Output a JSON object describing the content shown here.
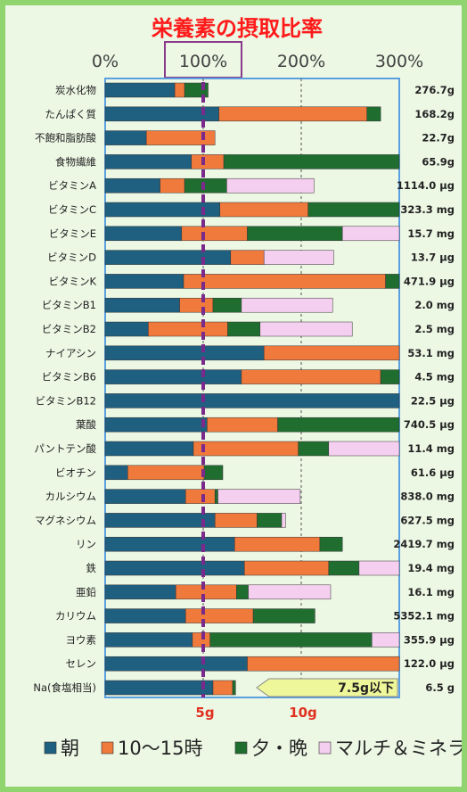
{
  "chart_data": {
    "type": "bar",
    "orientation": "horizontal",
    "stacked": true,
    "title": "栄養素の摂取比率",
    "x_ticks": [
      "0%",
      "100%",
      "200%",
      "300%"
    ],
    "xlim": [
      0,
      300
    ],
    "grid": "dashed vertical at 100% and 200%",
    "categories": [
      "炭水化物",
      "たんぱく質",
      "不飽和脂肪酸",
      "食物繊維",
      "ビタミンA",
      "ビタミンC",
      "ビタミンE",
      "ビタミンD",
      "ビタミンK",
      "ビタミンB1",
      "ビタミンB2",
      "ナイアシン",
      "ビタミンB6",
      "ビタミンB12",
      "葉酸",
      "パントテン酸",
      "ビオチン",
      "カルシウム",
      "マグネシウム",
      "リン",
      "鉄",
      "亜鉛",
      "カリウム",
      "ヨウ素",
      "セレン",
      "Na(食塩相当)"
    ],
    "totals": [
      "276.7g",
      "168.2g",
      "22.7g",
      "65.9g",
      "1114.0 μg",
      "323.3 mg",
      "15.7 mg",
      "13.7 μg",
      "471.9 μg",
      "2.0 mg",
      "2.5 mg",
      "53.1 mg",
      "4.5 mg",
      "22.5 μg",
      "740.5 μg",
      "11.4 mg",
      "61.6 μg",
      "838.0 mg",
      "627.5 mg",
      "2419.7 mg",
      "19.4 mg",
      "16.1 mg",
      "5352.1 mg",
      "355.9 μg",
      "122.0 μg",
      "6.5 g"
    ],
    "series": [
      {
        "name": "朝",
        "color": "#1f5f80",
        "values": [
          71,
          116,
          42,
          88,
          56,
          117,
          78,
          128,
          80,
          76,
          44,
          162,
          139,
          300,
          104,
          90,
          23,
          82,
          112,
          132,
          142,
          72,
          82,
          89,
          145,
          110
        ]
      },
      {
        "name": "10～15時",
        "color": "#f07a3c",
        "values": [
          10,
          151,
          70,
          33,
          25,
          90,
          67,
          34,
          206,
          34,
          81,
          138,
          142,
          0,
          72,
          107,
          78,
          30,
          43,
          87,
          86,
          62,
          69,
          18,
          155,
          20
        ]
      },
      {
        "name": "夕・晩",
        "color": "#1f6e30",
        "values": [
          24,
          14,
          0,
          180,
          43,
          94,
          97,
          0,
          16,
          29,
          33,
          0,
          19,
          0,
          124,
          31,
          19,
          3,
          25,
          23,
          31,
          12,
          63,
          165,
          0,
          3
        ]
      },
      {
        "name": "マルチ＆ミネラル",
        "color": "#f5cff0",
        "values": [
          0,
          0,
          0,
          0,
          89,
          0,
          58,
          71,
          0,
          93,
          94,
          0,
          0,
          0,
          0,
          72,
          0,
          84,
          4,
          0,
          41,
          84,
          0,
          28,
          0,
          0
        ]
      }
    ],
    "salt_axis": {
      "ticks": [
        "5g",
        "10g"
      ],
      "target_label": "7.5g以下"
    }
  }
}
